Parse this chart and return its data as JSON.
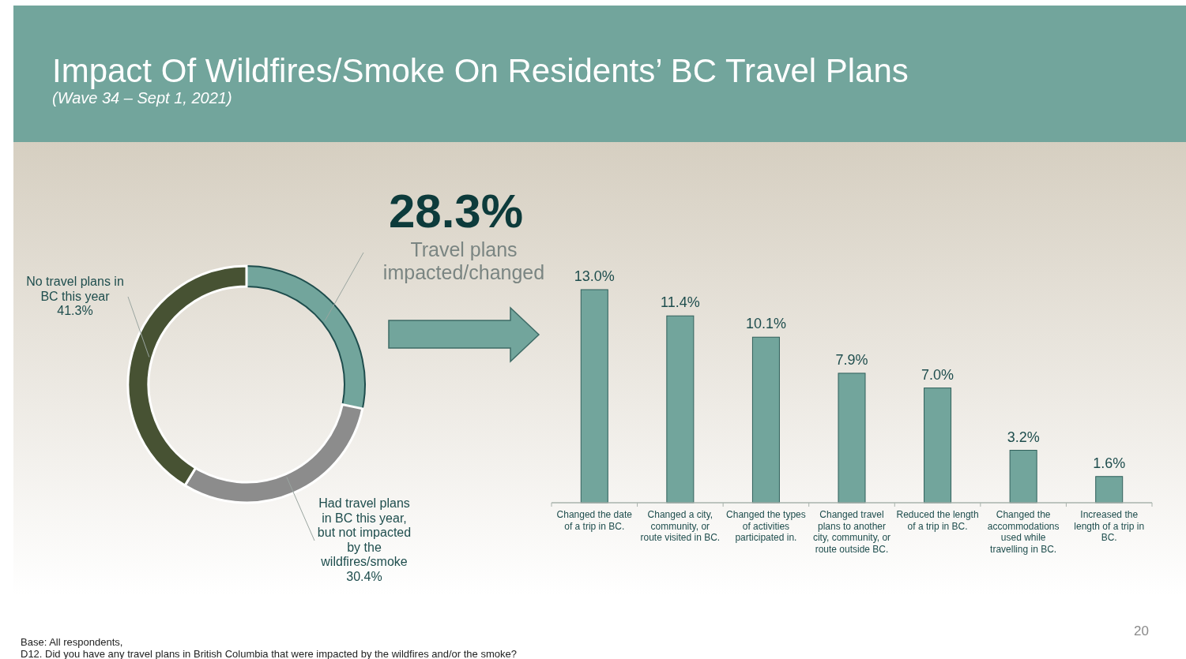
{
  "chart_data": [
    {
      "type": "donut",
      "title": "Impact Of Wildfires/Smoke On Residents’ BC Travel Plans",
      "subtitle": "(Wave 34 – Sept 1, 2021)",
      "categories": [
        "Travel plans\nimpacted/changed",
        "Had travel plans\nin BC this year,\nbut not impacted\nby the\nwildfires/smoke",
        "No travel plans in\nBC this year"
      ],
      "values": [
        28.3,
        30.4,
        41.3
      ],
      "colors": [
        "#72a59c",
        "#8c8c8c",
        "#475233"
      ],
      "value_labels": [
        "28.3%",
        "30.4%",
        "41.3%"
      ],
      "annotations": [
        "Base: All respondents,\nD12. Did you have any travel plans in British Columbia that were impacted by the wildfires and/or the smoke?",
        "20"
      ]
    },
    {
      "type": "bar",
      "categories": [
        "Changed the date\nof a trip in BC.",
        "Changed a city,\ncommunity, or\nroute visited in BC.",
        "Changed the types\nof activities\nparticipated in.",
        "Changed  travel\nplans to another\ncity, community, or\nroute outside BC.",
        "Reduced the length\nof a trip in BC.",
        "Changed the\naccommodations\nused while\ntravelling in BC.",
        "Increased the\nlength of a trip in\nBC."
      ],
      "values": [
        13.0,
        11.4,
        10.1,
        7.9,
        7.0,
        3.2,
        1.6
      ],
      "value_labels": [
        "13.0%",
        "11.4%",
        "10.1%",
        "7.9%",
        "7.0%",
        "3.2%",
        "1.6%"
      ],
      "color": "#72a59c"
    }
  ]
}
